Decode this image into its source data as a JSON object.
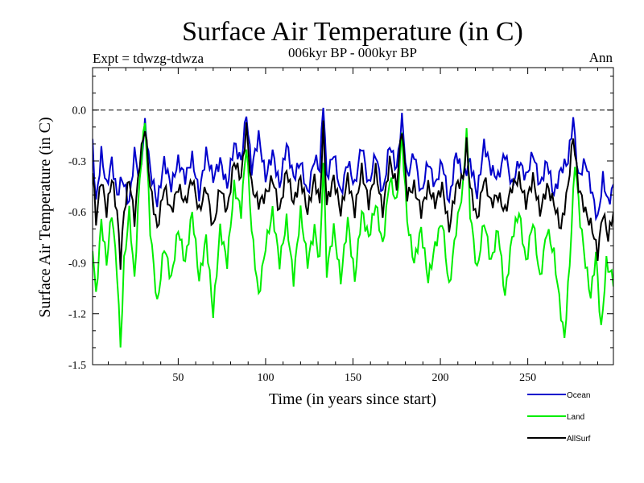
{
  "chart_data": {
    "type": "line",
    "title": "Surface Air Temperature (in C)",
    "subtitle": "006kyr BP - 000kyr BP",
    "left_label": "Expt = tdwzg-tdwza",
    "right_label": "Ann",
    "xlabel": "Time (in years since start)",
    "ylabel": "Surface Air Temperature (in C)",
    "xlim": [
      1,
      299
    ],
    "ylim": [
      -1.5,
      0.25
    ],
    "x_ticks": [
      50,
      100,
      150,
      200,
      250
    ],
    "y_ticks": [
      0.0,
      -0.3,
      -0.6,
      -0.9,
      -1.2,
      -1.5
    ],
    "y_tick_labels": [
      "0.0",
      "-0.3",
      "-0.6",
      "-0.9",
      "-1.2",
      "-1.5"
    ],
    "reference_line": 0.0,
    "legend_position": "below-right",
    "series": [
      {
        "name": "Ocean",
        "color": "#0000cc",
        "anchors": [
          [
            1,
            -0.2
          ],
          [
            3,
            -0.55
          ],
          [
            6,
            -0.25
          ],
          [
            9,
            -0.45
          ],
          [
            12,
            -0.3
          ],
          [
            15,
            -0.5
          ],
          [
            18,
            -0.4
          ],
          [
            22,
            -0.55
          ],
          [
            25,
            -0.25
          ],
          [
            28,
            -0.4
          ],
          [
            31,
            -0.08
          ],
          [
            34,
            -0.35
          ],
          [
            38,
            -0.55
          ],
          [
            42,
            -0.3
          ],
          [
            46,
            -0.45
          ],
          [
            50,
            -0.3
          ],
          [
            54,
            -0.4
          ],
          [
            58,
            -0.28
          ],
          [
            62,
            -0.5
          ],
          [
            66,
            -0.25
          ],
          [
            70,
            -0.4
          ],
          [
            74,
            -0.3
          ],
          [
            78,
            -0.45
          ],
          [
            82,
            -0.2
          ],
          [
            86,
            -0.3
          ],
          [
            89,
            -0.02
          ],
          [
            92,
            -0.35
          ],
          [
            96,
            -0.15
          ],
          [
            100,
            -0.4
          ],
          [
            104,
            -0.25
          ],
          [
            108,
            -0.45
          ],
          [
            112,
            -0.2
          ],
          [
            116,
            -0.4
          ],
          [
            120,
            -0.3
          ],
          [
            124,
            -0.5
          ],
          [
            128,
            -0.28
          ],
          [
            131,
            -0.35
          ],
          [
            133,
            0.05
          ],
          [
            135,
            -0.4
          ],
          [
            139,
            -0.25
          ],
          [
            143,
            -0.5
          ],
          [
            147,
            -0.3
          ],
          [
            151,
            -0.45
          ],
          [
            155,
            -0.2
          ],
          [
            159,
            -0.45
          ],
          [
            163,
            -0.25
          ],
          [
            167,
            -0.5
          ],
          [
            171,
            -0.2
          ],
          [
            175,
            -0.35
          ],
          [
            178,
            -0.05
          ],
          [
            181,
            -0.4
          ],
          [
            185,
            -0.25
          ],
          [
            189,
            -0.5
          ],
          [
            193,
            -0.3
          ],
          [
            197,
            -0.45
          ],
          [
            201,
            -0.3
          ],
          [
            205,
            -0.55
          ],
          [
            209,
            -0.25
          ],
          [
            213,
            -0.4
          ],
          [
            217,
            -0.3
          ],
          [
            221,
            -0.5
          ],
          [
            225,
            -0.2
          ],
          [
            229,
            -0.35
          ],
          [
            233,
            -0.4
          ],
          [
            237,
            -0.25
          ],
          [
            241,
            -0.45
          ],
          [
            245,
            -0.3
          ],
          [
            249,
            -0.4
          ],
          [
            253,
            -0.25
          ],
          [
            257,
            -0.45
          ],
          [
            261,
            -0.3
          ],
          [
            265,
            -0.5
          ],
          [
            269,
            -0.35
          ],
          [
            273,
            -0.3
          ],
          [
            276,
            -0.05
          ],
          [
            279,
            -0.4
          ],
          [
            283,
            -0.3
          ],
          [
            287,
            -0.5
          ],
          [
            290,
            -0.65
          ],
          [
            293,
            -0.4
          ],
          [
            296,
            -0.55
          ],
          [
            299,
            -0.45
          ]
        ]
      },
      {
        "name": "Land",
        "color": "#00ee00",
        "anchors": [
          [
            1,
            -0.8
          ],
          [
            3,
            -1.1
          ],
          [
            6,
            -0.65
          ],
          [
            9,
            -0.9
          ],
          [
            12,
            -0.6
          ],
          [
            15,
            -0.95
          ],
          [
            17,
            -1.4
          ],
          [
            19,
            -0.9
          ],
          [
            22,
            -0.6
          ],
          [
            25,
            -1.0
          ],
          [
            28,
            -0.4
          ],
          [
            31,
            -0.05
          ],
          [
            34,
            -0.7
          ],
          [
            38,
            -1.15
          ],
          [
            42,
            -0.8
          ],
          [
            46,
            -1.0
          ],
          [
            50,
            -0.7
          ],
          [
            54,
            -0.9
          ],
          [
            58,
            -0.6
          ],
          [
            62,
            -1.0
          ],
          [
            66,
            -0.75
          ],
          [
            70,
            -1.2
          ],
          [
            74,
            -0.7
          ],
          [
            78,
            -0.9
          ],
          [
            82,
            -0.45
          ],
          [
            86,
            -0.6
          ],
          [
            89,
            -0.2
          ],
          [
            92,
            -0.7
          ],
          [
            96,
            -1.1
          ],
          [
            100,
            -0.8
          ],
          [
            104,
            -0.6
          ],
          [
            108,
            -0.9
          ],
          [
            112,
            -0.65
          ],
          [
            116,
            -1.0
          ],
          [
            120,
            -0.6
          ],
          [
            124,
            -0.9
          ],
          [
            128,
            -0.7
          ],
          [
            131,
            -0.9
          ],
          [
            133,
            -0.3
          ],
          [
            135,
            -0.95
          ],
          [
            139,
            -0.7
          ],
          [
            143,
            -1.0
          ],
          [
            147,
            -0.65
          ],
          [
            151,
            -1.0
          ],
          [
            155,
            -0.6
          ],
          [
            159,
            -0.75
          ],
          [
            163,
            -0.55
          ],
          [
            167,
            -0.8
          ],
          [
            171,
            -0.4
          ],
          [
            175,
            -0.55
          ],
          [
            178,
            -0.15
          ],
          [
            181,
            -0.65
          ],
          [
            185,
            -0.9
          ],
          [
            189,
            -0.7
          ],
          [
            193,
            -1.0
          ],
          [
            197,
            -0.8
          ],
          [
            201,
            -0.65
          ],
          [
            205,
            -1.05
          ],
          [
            209,
            -0.7
          ],
          [
            213,
            -0.45
          ],
          [
            215,
            -0.1
          ],
          [
            217,
            -0.6
          ],
          [
            221,
            -0.95
          ],
          [
            225,
            -0.65
          ],
          [
            229,
            -0.9
          ],
          [
            233,
            -0.7
          ],
          [
            237,
            -1.1
          ],
          [
            241,
            -0.75
          ],
          [
            245,
            -0.6
          ],
          [
            249,
            -0.9
          ],
          [
            253,
            -0.65
          ],
          [
            257,
            -1.0
          ],
          [
            261,
            -0.7
          ],
          [
            265,
            -0.85
          ],
          [
            269,
            -1.2
          ],
          [
            271,
            -1.35
          ],
          [
            274,
            -0.9
          ],
          [
            277,
            -0.3
          ],
          [
            280,
            -0.65
          ],
          [
            283,
            -0.9
          ],
          [
            286,
            -1.1
          ],
          [
            289,
            -0.85
          ],
          [
            292,
            -1.3
          ],
          [
            295,
            -0.9
          ],
          [
            299,
            -1.0
          ]
        ]
      },
      {
        "name": "AllSurf",
        "color": "#000000",
        "anchors": [
          [
            1,
            -0.35
          ],
          [
            3,
            -0.65
          ],
          [
            6,
            -0.4
          ],
          [
            9,
            -0.6
          ],
          [
            12,
            -0.4
          ],
          [
            15,
            -0.6
          ],
          [
            17,
            -0.9
          ],
          [
            19,
            -0.6
          ],
          [
            22,
            -0.4
          ],
          [
            25,
            -0.65
          ],
          [
            28,
            -0.3
          ],
          [
            31,
            -0.1
          ],
          [
            34,
            -0.45
          ],
          [
            38,
            -0.7
          ],
          [
            42,
            -0.45
          ],
          [
            46,
            -0.6
          ],
          [
            50,
            -0.45
          ],
          [
            54,
            -0.55
          ],
          [
            58,
            -0.4
          ],
          [
            62,
            -0.6
          ],
          [
            66,
            -0.45
          ],
          [
            70,
            -0.7
          ],
          [
            74,
            -0.45
          ],
          [
            78,
            -0.6
          ],
          [
            82,
            -0.3
          ],
          [
            86,
            -0.4
          ],
          [
            89,
            -0.1
          ],
          [
            92,
            -0.45
          ],
          [
            96,
            -0.55
          ],
          [
            100,
            -0.5
          ],
          [
            104,
            -0.4
          ],
          [
            108,
            -0.6
          ],
          [
            112,
            -0.35
          ],
          [
            116,
            -0.55
          ],
          [
            120,
            -0.4
          ],
          [
            124,
            -0.6
          ],
          [
            128,
            -0.4
          ],
          [
            131,
            -0.55
          ],
          [
            133,
            -0.1
          ],
          [
            135,
            -0.55
          ],
          [
            139,
            -0.4
          ],
          [
            143,
            -0.6
          ],
          [
            147,
            -0.4
          ],
          [
            151,
            -0.6
          ],
          [
            155,
            -0.35
          ],
          [
            159,
            -0.55
          ],
          [
            163,
            -0.35
          ],
          [
            167,
            -0.6
          ],
          [
            171,
            -0.3
          ],
          [
            175,
            -0.45
          ],
          [
            178,
            -0.1
          ],
          [
            181,
            -0.5
          ],
          [
            185,
            -0.45
          ],
          [
            189,
            -0.6
          ],
          [
            193,
            -0.45
          ],
          [
            197,
            -0.55
          ],
          [
            201,
            -0.45
          ],
          [
            205,
            -0.7
          ],
          [
            209,
            -0.45
          ],
          [
            213,
            -0.4
          ],
          [
            215,
            -0.2
          ],
          [
            217,
            -0.45
          ],
          [
            221,
            -0.65
          ],
          [
            225,
            -0.4
          ],
          [
            229,
            -0.55
          ],
          [
            233,
            -0.5
          ],
          [
            237,
            -0.6
          ],
          [
            241,
            -0.45
          ],
          [
            245,
            -0.4
          ],
          [
            249,
            -0.55
          ],
          [
            253,
            -0.4
          ],
          [
            257,
            -0.6
          ],
          [
            261,
            -0.45
          ],
          [
            265,
            -0.55
          ],
          [
            269,
            -0.7
          ],
          [
            273,
            -0.45
          ],
          [
            276,
            -0.15
          ],
          [
            279,
            -0.45
          ],
          [
            283,
            -0.6
          ],
          [
            287,
            -0.7
          ],
          [
            290,
            -0.85
          ],
          [
            293,
            -0.6
          ],
          [
            296,
            -0.75
          ],
          [
            299,
            -0.6
          ]
        ]
      }
    ]
  }
}
